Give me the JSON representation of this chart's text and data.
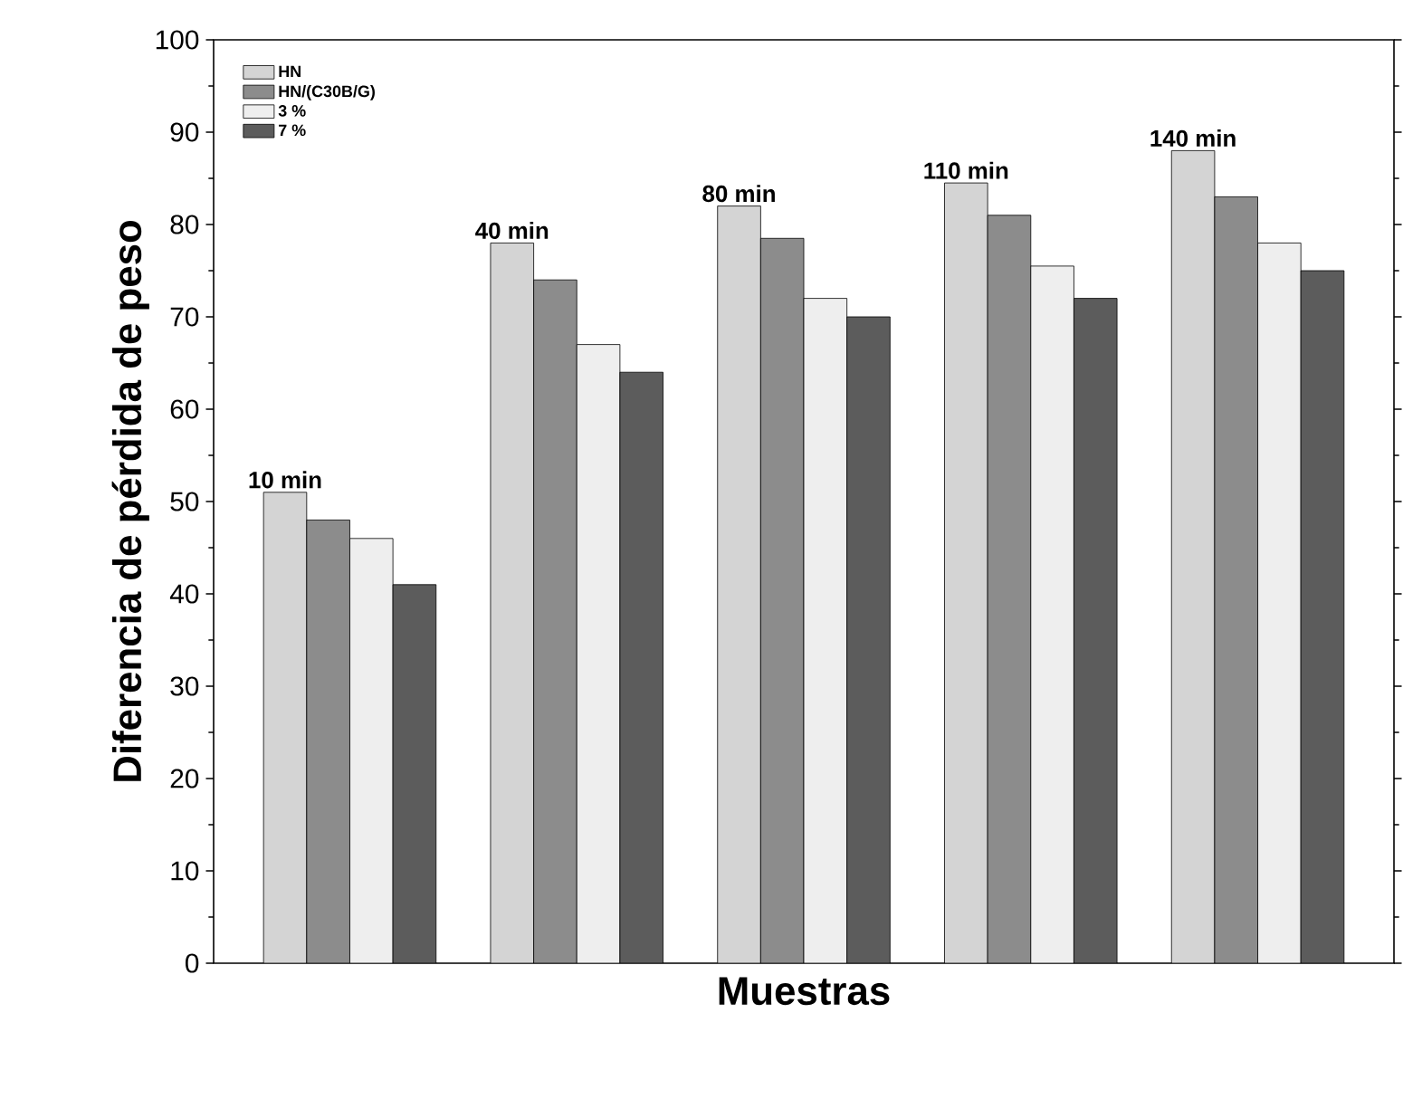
{
  "chart_data": {
    "type": "bar",
    "xlabel": "Muestras",
    "ylabel": "Diferencia de pérdida de peso",
    "categories": [
      null,
      null,
      null,
      null,
      null
    ],
    "series": [
      {
        "name": "HN",
        "color": "#d4d4d4",
        "values": [
          51,
          78,
          82,
          84.5,
          88
        ]
      },
      {
        "name": "HN/(C30B/G)",
        "color": "#8c8c8c",
        "values": [
          48,
          74,
          78.5,
          81,
          83
        ]
      },
      {
        "name": "3 %",
        "color": "#eeeeee",
        "values": [
          46,
          67,
          72,
          75.5,
          78
        ]
      },
      {
        "name": "7 %",
        "color": "#5c5c5c",
        "values": [
          41,
          64,
          70,
          72,
          75
        ]
      }
    ],
    "ylim": [
      0,
      100
    ],
    "yticks": [
      0,
      10,
      20,
      30,
      40,
      50,
      60,
      70,
      80,
      90,
      100
    ],
    "legend": "top left",
    "annotations": [
      "10 min",
      "40 min",
      "80 min",
      "110 min",
      "140 min"
    ]
  }
}
